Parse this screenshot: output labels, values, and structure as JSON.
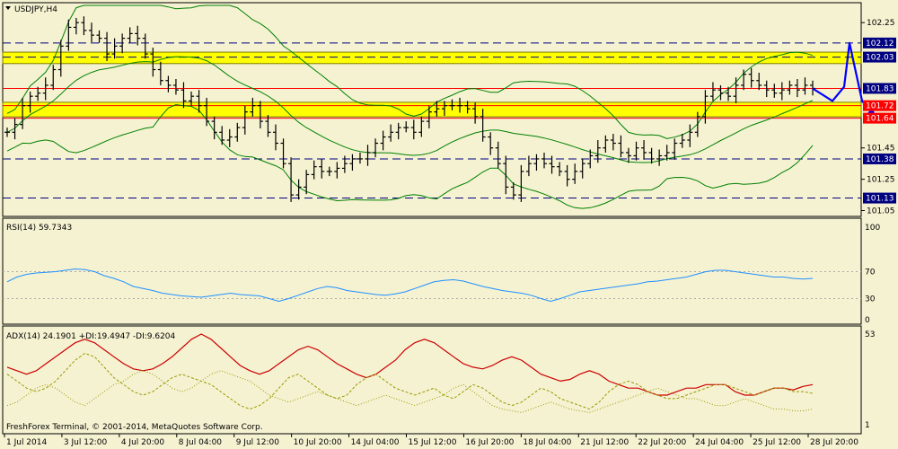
{
  "window": {
    "symbol_label": "USDJPY,H4",
    "footer": "FreshForex Terminal, © 2001-2014, MetaQuotes Software Corp."
  },
  "colors": {
    "background": "#f5f2d2",
    "price_bars": "#000000",
    "bollinger": "#008000",
    "dashed_levels": "#000080",
    "zone_fill": "#ffff00",
    "red_level": "#ff0000",
    "forecast_arrow": "#0000ff",
    "rsi_line": "#1e90ff",
    "adx_line": "#cc0000",
    "di_lines": "#999900"
  },
  "chart_data": [
    {
      "type": "candlestick",
      "panel": "price",
      "title": "USDJPY,H4",
      "x_tick_labels": [
        "1 Jul 2014",
        "3 Jul 12:00",
        "4 Jul 20:00",
        "8 Jul 04:00",
        "9 Jul 12:00",
        "10 Jul 20:00",
        "14 Jul 04:00",
        "15 Jul 12:00",
        "16 Jul 20:00",
        "18 Jul 04:00",
        "21 Jul 12:00",
        "22 Jul 20:00",
        "24 Jul 04:00",
        "25 Jul 12:00",
        "28 Jul 20:00"
      ],
      "y_tick_labels": [
        "102.25",
        "101.45",
        "101.25",
        "101.05"
      ],
      "y_tick_values": [
        102.25,
        101.45,
        101.25,
        101.05
      ],
      "ylim": [
        101.03,
        102.36
      ],
      "levels": [
        {
          "value": 102.12,
          "label": "102.12",
          "style": "dashed",
          "tag_color": "#000080"
        },
        {
          "value": 102.03,
          "label": "102.03",
          "style": "dashed",
          "tag_color": "#000080"
        },
        {
          "value": 101.83,
          "label": "101.83",
          "style": "red-line",
          "tag_color": "#000080"
        },
        {
          "value": 101.72,
          "label": "101.72",
          "style": "red-line",
          "tag_color": "#ff0000"
        },
        {
          "value": 101.64,
          "label": "101.64",
          "style": "red-line",
          "tag_color": "#ff0000"
        },
        {
          "value": 101.38,
          "label": "101.38",
          "style": "dashed",
          "tag_color": "#000080"
        },
        {
          "value": 101.13,
          "label": "101.13",
          "style": "dashed",
          "tag_color": "#000080"
        }
      ],
      "zones": [
        [
          102.0,
          102.05
        ],
        [
          101.66,
          101.73
        ]
      ],
      "close": [
        101.55,
        101.6,
        101.72,
        101.78,
        101.8,
        101.85,
        101.95,
        102.1,
        102.22,
        102.25,
        102.2,
        102.17,
        102.15,
        102.05,
        102.1,
        102.15,
        102.18,
        102.15,
        102.05,
        101.95,
        101.88,
        101.85,
        101.82,
        101.75,
        101.78,
        101.72,
        101.62,
        101.55,
        101.5,
        101.52,
        101.58,
        101.68,
        101.72,
        101.62,
        101.55,
        101.48,
        101.35,
        101.15,
        101.2,
        101.28,
        101.33,
        101.3,
        101.3,
        101.32,
        101.35,
        101.38,
        101.38,
        101.42,
        101.48,
        101.52,
        101.55,
        101.58,
        101.58,
        101.55,
        101.62,
        101.68,
        101.7,
        101.72,
        101.72,
        101.72,
        101.7,
        101.65,
        101.52,
        101.45,
        101.35,
        101.2,
        101.15,
        101.3,
        101.35,
        101.38,
        101.35,
        101.33,
        101.3,
        101.25,
        101.3,
        101.35,
        101.4,
        101.45,
        101.5,
        101.48,
        101.42,
        101.4,
        101.45,
        101.42,
        101.38,
        101.4,
        101.42,
        101.48,
        101.5,
        101.55,
        101.65,
        101.78,
        101.82,
        101.8,
        101.78,
        101.85,
        101.92,
        101.88,
        101.85,
        101.82,
        101.8,
        101.82,
        101.85,
        101.82,
        101.85,
        101.83
      ],
      "forecast_path": [
        101.83,
        101.75,
        101.84,
        102.12,
        101.75,
        101.65
      ]
    },
    {
      "type": "line",
      "panel": "rsi",
      "label": "RSI(14) 59.7343",
      "y_tick_labels": [
        "100",
        "70",
        "30",
        "0"
      ],
      "y_tick_values": [
        100,
        70,
        30,
        0
      ],
      "levels": [
        70,
        30
      ],
      "ylim": [
        0,
        100
      ],
      "values": [
        55,
        62,
        66,
        68,
        69,
        70,
        72,
        74,
        73,
        70,
        64,
        60,
        55,
        48,
        45,
        42,
        38,
        36,
        34,
        33,
        32,
        34,
        36,
        38,
        36,
        35,
        34,
        30,
        26,
        30,
        35,
        40,
        45,
        48,
        46,
        42,
        40,
        38,
        36,
        35,
        37,
        40,
        45,
        50,
        55,
        57,
        58,
        56,
        52,
        48,
        45,
        42,
        40,
        38,
        35,
        30,
        26,
        30,
        35,
        40,
        42,
        44,
        46,
        48,
        50,
        52,
        55,
        56,
        58,
        60,
        62,
        66,
        70,
        72,
        72,
        70,
        68,
        66,
        64,
        62,
        62,
        60,
        59,
        60
      ]
    },
    {
      "type": "line",
      "panel": "adx",
      "label": "ADX(14) 24.1901 +DI:19.4947 -DI:9.6204",
      "y_tick_labels": [
        "53",
        "1"
      ],
      "y_tick_values": [
        53,
        1
      ],
      "ylim": [
        1,
        53
      ],
      "series": [
        {
          "name": "ADX(14)",
          "values": [
            34,
            32,
            30,
            32,
            36,
            40,
            44,
            48,
            50,
            48,
            44,
            40,
            36,
            33,
            32,
            33,
            36,
            40,
            45,
            50,
            53,
            50,
            45,
            40,
            35,
            32,
            30,
            32,
            36,
            40,
            44,
            46,
            44,
            40,
            36,
            33,
            30,
            28,
            30,
            34,
            38,
            44,
            48,
            50,
            48,
            44,
            40,
            36,
            34,
            33,
            35,
            38,
            40,
            38,
            34,
            30,
            28,
            26,
            27,
            30,
            32,
            30,
            26,
            24,
            22,
            22,
            20,
            18,
            18,
            20,
            22,
            22,
            24,
            24,
            24,
            20,
            18,
            18,
            20,
            22,
            22,
            21,
            23,
            24
          ]
        },
        {
          "name": "+DI",
          "values": [
            30,
            26,
            22,
            20,
            22,
            26,
            32,
            38,
            42,
            40,
            34,
            28,
            24,
            20,
            18,
            20,
            24,
            28,
            30,
            28,
            26,
            24,
            20,
            16,
            12,
            10,
            12,
            16,
            22,
            28,
            30,
            26,
            22,
            18,
            16,
            18,
            24,
            28,
            30,
            26,
            22,
            20,
            18,
            20,
            22,
            18,
            16,
            20,
            24,
            22,
            18,
            14,
            12,
            14,
            18,
            22,
            20,
            16,
            14,
            12,
            10,
            14,
            20,
            24,
            26,
            24,
            20,
            18,
            16,
            16,
            18,
            20,
            22,
            24,
            24,
            22,
            20,
            18,
            20,
            22,
            22,
            20,
            20,
            19
          ]
        },
        {
          "name": "-DI",
          "values": [
            12,
            14,
            18,
            22,
            24,
            22,
            18,
            14,
            12,
            16,
            20,
            24,
            26,
            30,
            32,
            30,
            26,
            22,
            20,
            22,
            26,
            30,
            32,
            30,
            28,
            26,
            22,
            18,
            16,
            14,
            16,
            18,
            20,
            18,
            16,
            14,
            12,
            14,
            16,
            18,
            16,
            14,
            12,
            14,
            16,
            18,
            22,
            24,
            20,
            16,
            12,
            10,
            9,
            8,
            10,
            12,
            14,
            12,
            10,
            9,
            8,
            10,
            12,
            14,
            16,
            18,
            20,
            22,
            20,
            18,
            16,
            16,
            14,
            12,
            12,
            14,
            16,
            14,
            12,
            10,
            10,
            9,
            9,
            10
          ]
        }
      ]
    }
  ]
}
